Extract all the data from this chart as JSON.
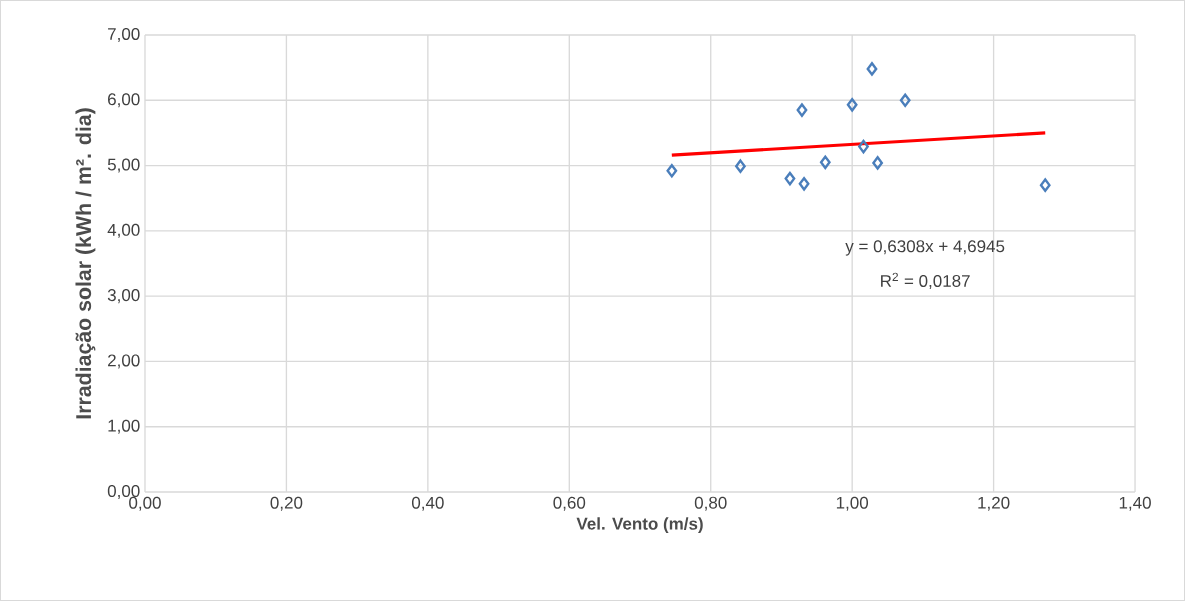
{
  "chart_data": {
    "type": "scatter",
    "xlabel": "Vel. Vento (m/s)",
    "ylabel": "Irradiação solar (kWh / m². dia)",
    "xlim": [
      0,
      1.4
    ],
    "ylim": [
      0,
      7
    ],
    "xticks": [
      {
        "value": 0,
        "label": "0,00"
      },
      {
        "value": 0.2,
        "label": "0,20"
      },
      {
        "value": 0.4,
        "label": "0,40"
      },
      {
        "value": 0.6,
        "label": "0,60"
      },
      {
        "value": 0.8,
        "label": "0,80"
      },
      {
        "value": 1.0,
        "label": "1,00"
      },
      {
        "value": 1.2,
        "label": "1,20"
      },
      {
        "value": 1.4,
        "label": "1,40"
      }
    ],
    "yticks": [
      {
        "value": 0,
        "label": "0,00"
      },
      {
        "value": 1,
        "label": "1,00"
      },
      {
        "value": 2,
        "label": "2,00"
      },
      {
        "value": 3,
        "label": "3,00"
      },
      {
        "value": 4,
        "label": "4,00"
      },
      {
        "value": 5,
        "label": "5,00"
      },
      {
        "value": 6,
        "label": "6,00"
      },
      {
        "value": 7,
        "label": "7,00"
      }
    ],
    "grid": true,
    "series": [
      {
        "marker": "diamond",
        "color": "#4a7ebb",
        "x": [
          0.745,
          0.842,
          0.912,
          0.929,
          0.932,
          0.962,
          1.0,
          1.016,
          1.028,
          1.036,
          1.075,
          1.273
        ],
        "values": [
          4.92,
          4.99,
          4.8,
          5.85,
          4.72,
          5.05,
          5.93,
          5.29,
          6.48,
          5.04,
          6.0,
          4.7
        ]
      },
      {
        "type": "line",
        "marker": "none",
        "color": "#ff0000",
        "x": [
          0.745,
          1.273
        ],
        "values": [
          5.16,
          5.5
        ]
      }
    ],
    "annotations": [
      "y = 0,6308x + 4,6945",
      "R$^{2}$ = 0,0187"
    ]
  }
}
